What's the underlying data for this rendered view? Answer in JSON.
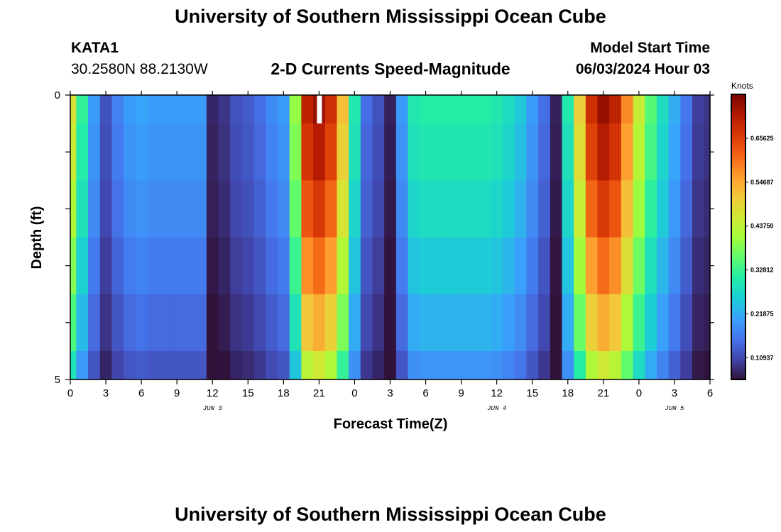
{
  "header": {
    "title": "University of Southern Mississippi Ocean Cube",
    "station_id": "KATA1",
    "coordinates": "30.2580N  88.2130W",
    "plot_title": "2-D Currents Speed-Magnitude",
    "model_start_label": "Model Start Time",
    "model_start_value": "06/03/2024 Hour 03"
  },
  "footer": {
    "title": "University of Southern Mississippi Ocean Cube"
  },
  "colors": {
    "colormap": [
      "#30123b",
      "#4145ab",
      "#4675ed",
      "#39a2fc",
      "#1bcfd4",
      "#24eca6",
      "#61fc6c",
      "#a4fc3b",
      "#d1e834",
      "#f3c63a",
      "#fe9b2d",
      "#f36315",
      "#d93806",
      "#b11901",
      "#7a0402"
    ]
  },
  "chart_data": {
    "type": "heatmap",
    "xlabel": "Forecast Time(Z)",
    "ylabel": "Depth (ft)",
    "colorbar_label": "Knots",
    "colorbar_ticks": [
      "0.10937",
      "0.21875",
      "0.32812",
      "0.43750",
      "0.54687",
      "0.65625"
    ],
    "colorbar_tick_values": [
      0.10937,
      0.21875,
      0.32812,
      0.4375,
      0.54687,
      0.65625
    ],
    "vmin": 0.055,
    "vmax": 0.766,
    "x_tick_labels": [
      "0",
      "3",
      "6",
      "9",
      "12",
      "15",
      "18",
      "21",
      "0",
      "3",
      "6",
      "9",
      "12",
      "15",
      "18",
      "21",
      "0",
      "3",
      "6"
    ],
    "x_hours": [
      0,
      3,
      6,
      9,
      12,
      15,
      18,
      21,
      24,
      27,
      30,
      33,
      36,
      39,
      42,
      45,
      48,
      51,
      54
    ],
    "xlim": [
      0,
      54
    ],
    "date_labels": [
      {
        "label": "JUN 3",
        "hour": 12
      },
      {
        "label": "JUN 4",
        "hour": 36
      },
      {
        "label": "JUN 5",
        "hour": 51
      }
    ],
    "y_tick_labels": [
      "0",
      "5"
    ],
    "ylim": [
      0,
      5
    ],
    "depth_layers": [
      0,
      1,
      2,
      3,
      4,
      5
    ],
    "grid": false,
    "missing": {
      "hour": 21,
      "depth_layer": 0
    },
    "profile_hours": [
      0,
      1,
      2,
      3,
      4,
      5,
      6,
      7,
      8,
      9,
      10,
      11,
      12,
      13,
      14,
      15,
      16,
      17,
      18,
      19,
      20,
      21,
      22,
      23,
      24,
      25,
      26,
      27,
      28,
      29,
      30,
      31,
      32,
      33,
      34,
      35,
      36,
      37,
      38,
      39,
      40,
      41,
      42,
      43,
      44,
      45,
      46,
      47,
      48,
      49,
      50,
      51,
      52,
      53,
      54
    ],
    "profile_speeds": [
      0.47,
      0.32,
      0.2,
      0.12,
      0.17,
      0.2,
      0.21,
      0.2,
      0.2,
      0.2,
      0.2,
      0.2,
      0.075,
      0.09,
      0.12,
      0.13,
      0.15,
      0.18,
      0.2,
      0.4,
      0.7,
      0.74,
      0.68,
      0.52,
      0.3,
      0.15,
      0.12,
      0.07,
      0.2,
      0.3,
      0.31,
      0.31,
      0.31,
      0.31,
      0.31,
      0.31,
      0.3,
      0.28,
      0.25,
      0.2,
      0.15,
      0.07,
      0.3,
      0.5,
      0.68,
      0.74,
      0.7,
      0.58,
      0.45,
      0.35,
      0.28,
      0.22,
      0.16,
      0.1,
      0.09
    ],
    "depth_factors": [
      1.0,
      0.96,
      0.9,
      0.82,
      0.73,
      0.62
    ]
  }
}
